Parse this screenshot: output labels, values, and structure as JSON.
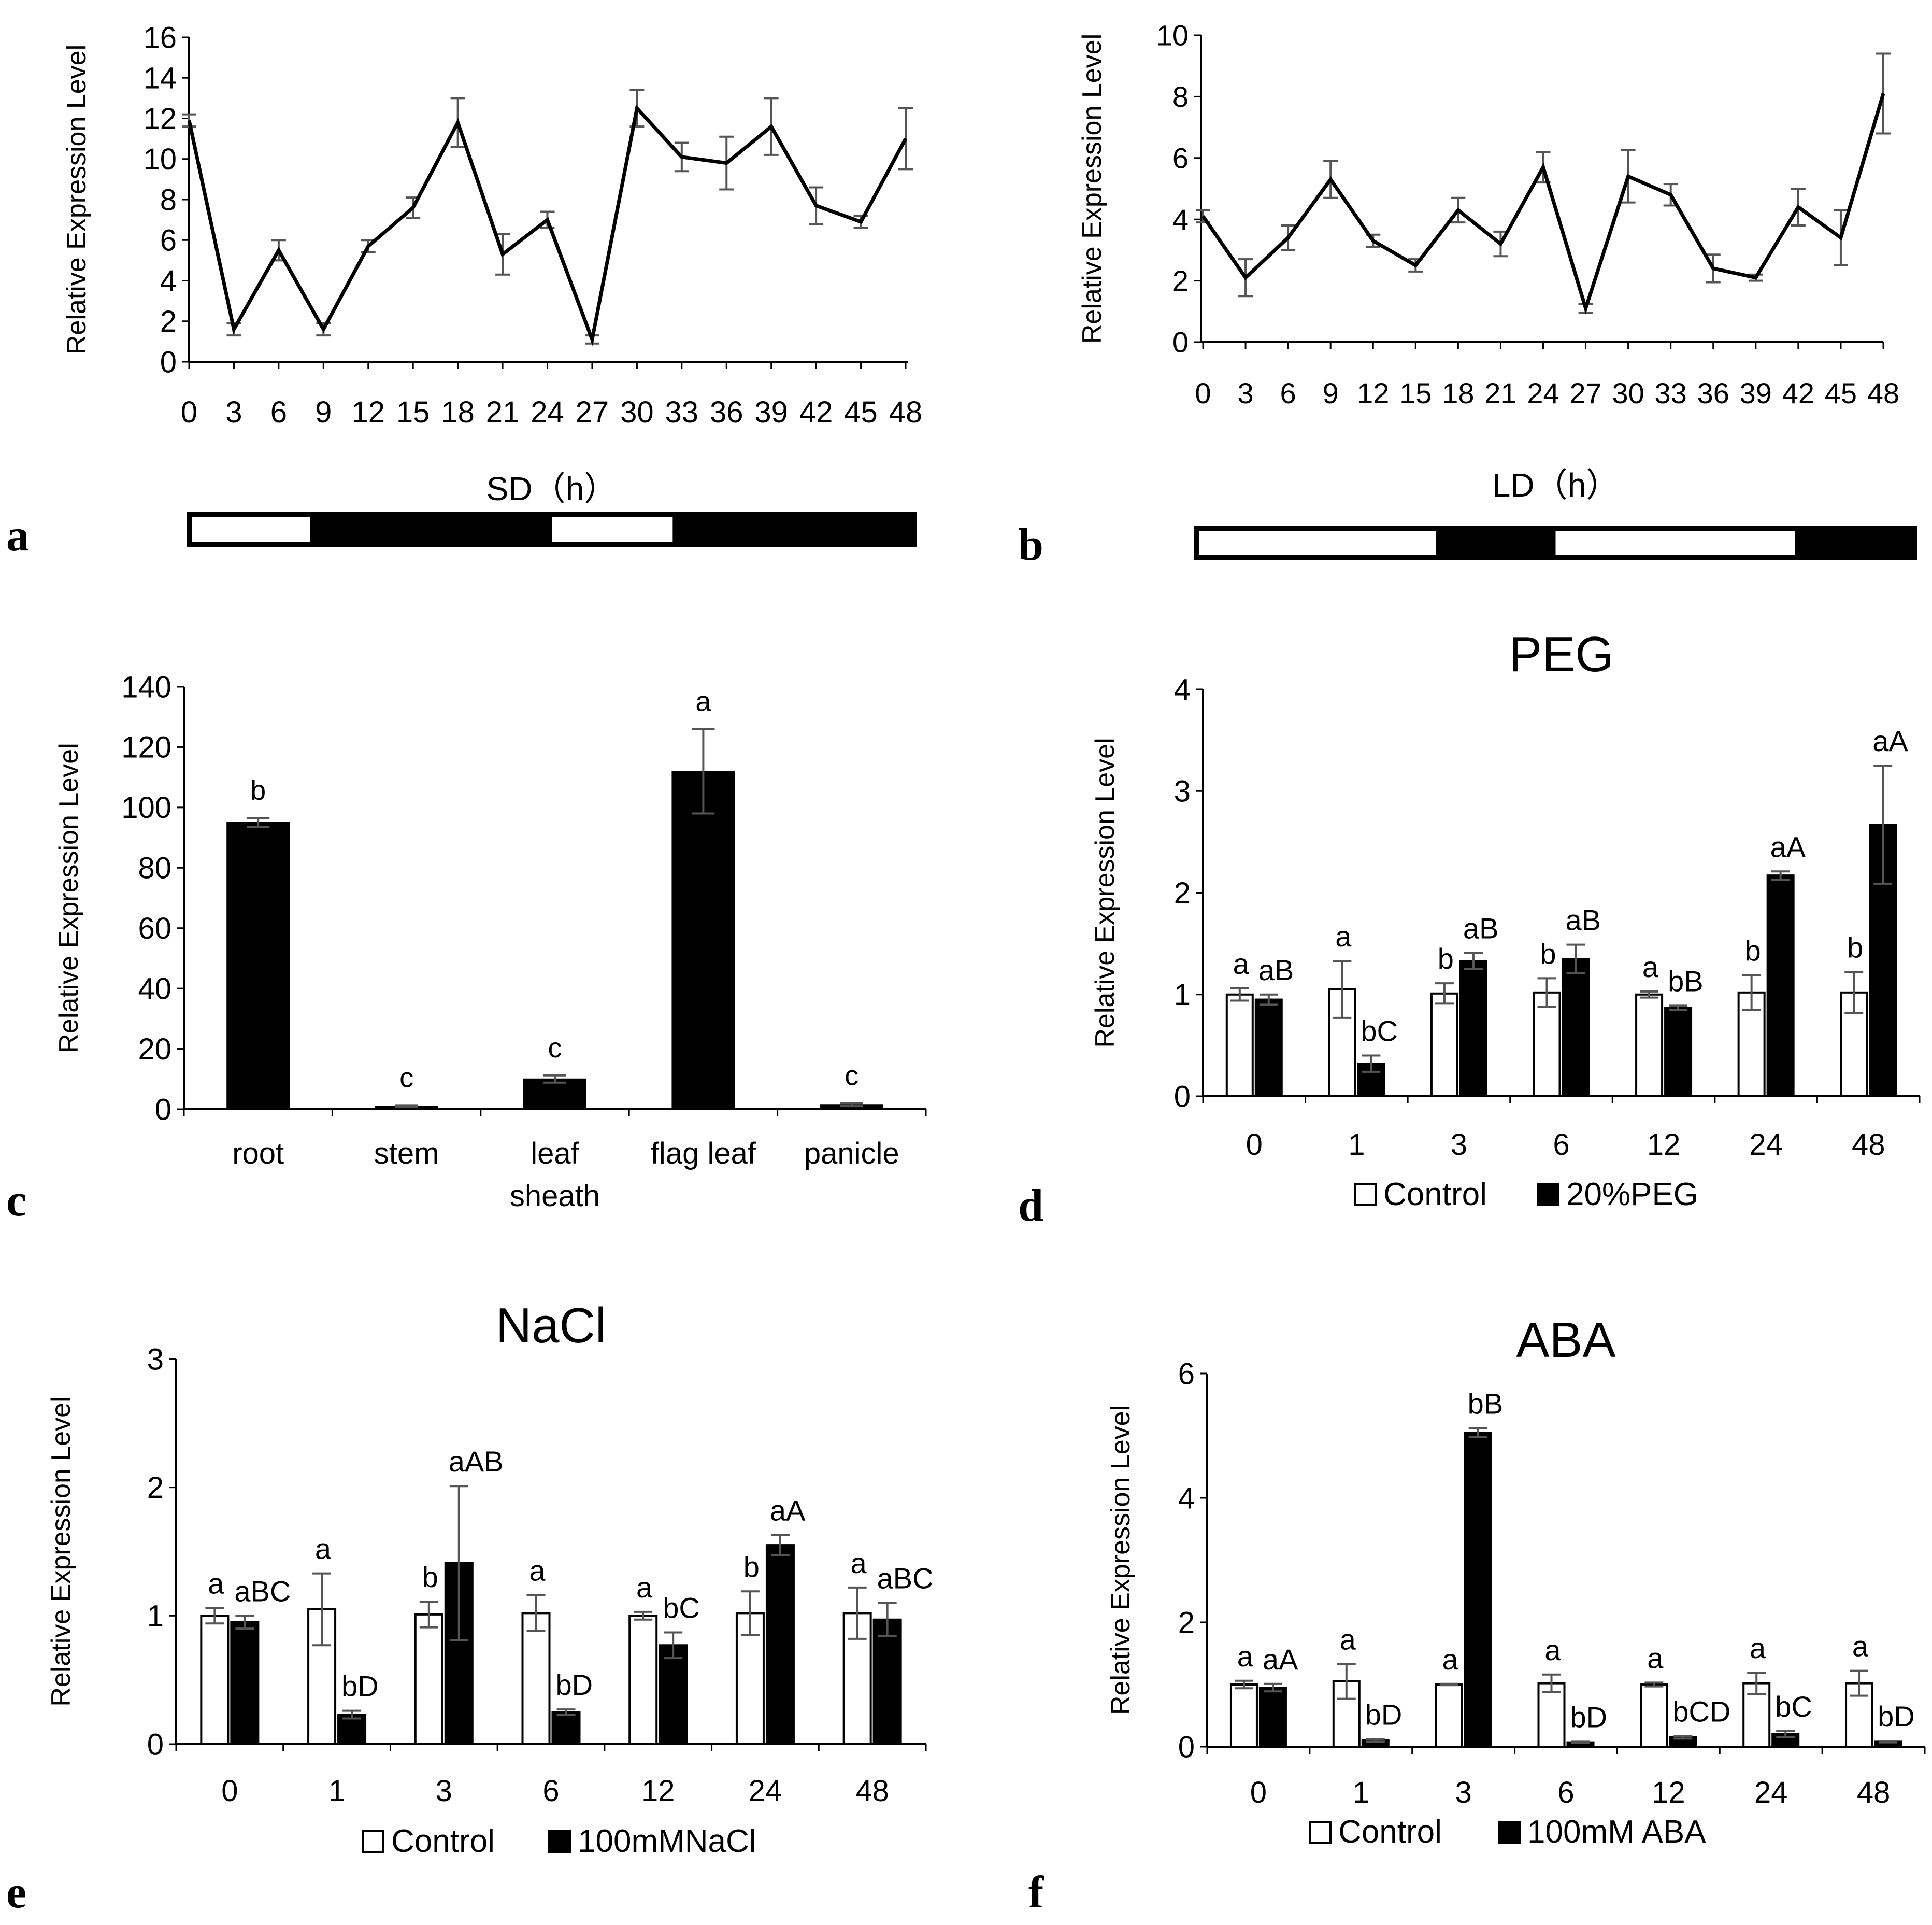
{
  "chart_data": [
    {
      "id": "a",
      "panel_label": "a",
      "type": "line",
      "title": "",
      "xlabel": "SD（h）",
      "ylabel": "Relative Expression Level",
      "ylim": [
        0,
        16
      ],
      "yticks": [
        0,
        2,
        4,
        6,
        8,
        10,
        12,
        14,
        16
      ],
      "x": [
        "0",
        "3",
        "6",
        "9",
        "12",
        "15",
        "18",
        "21",
        "24",
        "27",
        "30",
        "33",
        "36",
        "39",
        "42",
        "45",
        "48"
      ],
      "values": [
        11.9,
        1.6,
        5.5,
        1.6,
        5.7,
        7.6,
        11.8,
        5.3,
        7.0,
        1.1,
        12.5,
        10.1,
        9.8,
        11.6,
        7.7,
        6.9,
        11.0
      ],
      "errors": [
        0.3,
        0.3,
        0.5,
        0.3,
        0.3,
        0.5,
        1.2,
        1.0,
        0.4,
        0.2,
        0.9,
        0.7,
        1.3,
        1.4,
        0.9,
        0.3,
        1.5
      ],
      "photoperiod": [
        "light",
        "dark",
        "light",
        "dark"
      ],
      "photoperiod_hours": [
        8,
        16,
        8,
        16
      ]
    },
    {
      "id": "b",
      "panel_label": "b",
      "type": "line",
      "title": "",
      "xlabel": "LD（h）",
      "ylabel": "Relative Expression Level",
      "ylim": [
        0,
        10
      ],
      "yticks": [
        0,
        2,
        4,
        6,
        8,
        10
      ],
      "x": [
        "0",
        "3",
        "6",
        "9",
        "12",
        "15",
        "18",
        "21",
        "24",
        "27",
        "30",
        "33",
        "36",
        "39",
        "42",
        "45",
        "48"
      ],
      "values": [
        4.1,
        2.1,
        3.4,
        5.3,
        3.3,
        2.5,
        4.3,
        3.2,
        5.7,
        1.1,
        5.4,
        4.8,
        2.4,
        2.1,
        4.4,
        3.4,
        8.1
      ],
      "errors": [
        0.2,
        0.6,
        0.4,
        0.6,
        0.2,
        0.2,
        0.4,
        0.4,
        0.5,
        0.15,
        0.85,
        0.35,
        0.45,
        0.1,
        0.6,
        0.9,
        1.3
      ],
      "photoperiod": [
        "light",
        "dark",
        "light",
        "dark"
      ],
      "photoperiod_hours": [
        16,
        8,
        16,
        8
      ]
    },
    {
      "id": "c",
      "panel_label": "c",
      "type": "bar",
      "title": "",
      "xlabel": "",
      "ylabel": "Relative Expression Level",
      "ylim": [
        0,
        140
      ],
      "yticks": [
        0,
        20,
        40,
        60,
        80,
        100,
        120,
        140
      ],
      "categories": [
        "root",
        "stem",
        "leaf sheath",
        "flag leaf",
        "panicle"
      ],
      "category_lines": [
        [
          "root"
        ],
        [
          "stem"
        ],
        [
          "leaf",
          "sheath"
        ],
        [
          "flag leaf"
        ],
        [
          "panicle"
        ]
      ],
      "values": [
        95,
        1,
        10,
        112,
        1.5
      ],
      "errors": [
        1.5,
        0.3,
        1.2,
        14,
        0.5
      ],
      "annotations": [
        "b",
        "c",
        "c",
        "a",
        "c"
      ]
    },
    {
      "id": "d",
      "panel_label": "d",
      "type": "bar",
      "title": "PEG",
      "xlabel": "",
      "ylabel": "Relative Expression Level",
      "ylim": [
        0,
        4
      ],
      "yticks": [
        0,
        1,
        2,
        3,
        4
      ],
      "categories": [
        "0",
        "1",
        "3",
        "6",
        "12",
        "24",
        "48"
      ],
      "series": [
        {
          "name": "Control",
          "fill": "#ffffff",
          "values": [
            1.0,
            1.05,
            1.01,
            1.02,
            1.0,
            1.02,
            1.02
          ],
          "errors": [
            0.06,
            0.28,
            0.1,
            0.14,
            0.03,
            0.17,
            0.2
          ],
          "annotations": [
            "a",
            "a",
            "b",
            "b",
            "a",
            "b",
            "b"
          ]
        },
        {
          "name": "20%PEG",
          "fill": "#000000",
          "values": [
            0.95,
            0.32,
            1.33,
            1.35,
            0.87,
            2.17,
            2.67
          ],
          "errors": [
            0.05,
            0.08,
            0.08,
            0.14,
            0.02,
            0.04,
            0.58
          ],
          "annotations": [
            "aB",
            "bC",
            "aB",
            "aB",
            "bB",
            "aA",
            "aA"
          ]
        }
      ]
    },
    {
      "id": "e",
      "panel_label": "e",
      "type": "bar",
      "title": "NaCl",
      "xlabel": "",
      "ylabel": "Relative Expression Level",
      "ylim": [
        0,
        3
      ],
      "yticks": [
        0,
        1,
        2,
        3
      ],
      "categories": [
        "0",
        "1",
        "3",
        "6",
        "12",
        "24",
        "48"
      ],
      "series": [
        {
          "name": "Control",
          "fill": "#ffffff",
          "values": [
            1.0,
            1.05,
            1.01,
            1.02,
            1.0,
            1.02,
            1.02
          ],
          "errors": [
            0.06,
            0.28,
            0.1,
            0.14,
            0.03,
            0.17,
            0.2
          ],
          "annotations": [
            "a",
            "a",
            "b",
            "a",
            "a",
            "b",
            "a"
          ]
        },
        {
          "name": "100mMNaCl",
          "fill": "#000000",
          "values": [
            0.95,
            0.23,
            1.41,
            0.25,
            0.77,
            1.55,
            0.97
          ],
          "errors": [
            0.05,
            0.03,
            0.6,
            0.02,
            0.1,
            0.08,
            0.13
          ],
          "annotations": [
            "aBC",
            "bD",
            "aAB",
            "bD",
            "bC",
            "aA",
            "aBC"
          ]
        }
      ]
    },
    {
      "id": "f",
      "panel_label": "f",
      "type": "bar",
      "title": "ABA",
      "xlabel": "",
      "ylabel": "Relative Expression Level",
      "ylim": [
        0,
        6
      ],
      "yticks": [
        0,
        2,
        4,
        6
      ],
      "categories": [
        "0",
        "1",
        "3",
        "6",
        "12",
        "24",
        "48"
      ],
      "series": [
        {
          "name": "Control",
          "fill": "#ffffff",
          "values": [
            1.0,
            1.05,
            1.0,
            1.02,
            1.0,
            1.02,
            1.02
          ],
          "errors": [
            0.06,
            0.28,
            0.01,
            0.14,
            0.03,
            0.17,
            0.2
          ],
          "annotations": [
            "a",
            "a",
            "a",
            "a",
            "a",
            "a",
            "a"
          ]
        },
        {
          "name": "100mM ABA",
          "fill": "#000000",
          "values": [
            0.95,
            0.1,
            5.05,
            0.07,
            0.15,
            0.2,
            0.08
          ],
          "errors": [
            0.06,
            0.02,
            0.07,
            0.01,
            0.02,
            0.05,
            0.01
          ],
          "annotations": [
            "aA",
            "bD",
            "bB",
            "bD",
            "bCD",
            "bC",
            "bD"
          ]
        }
      ]
    }
  ]
}
